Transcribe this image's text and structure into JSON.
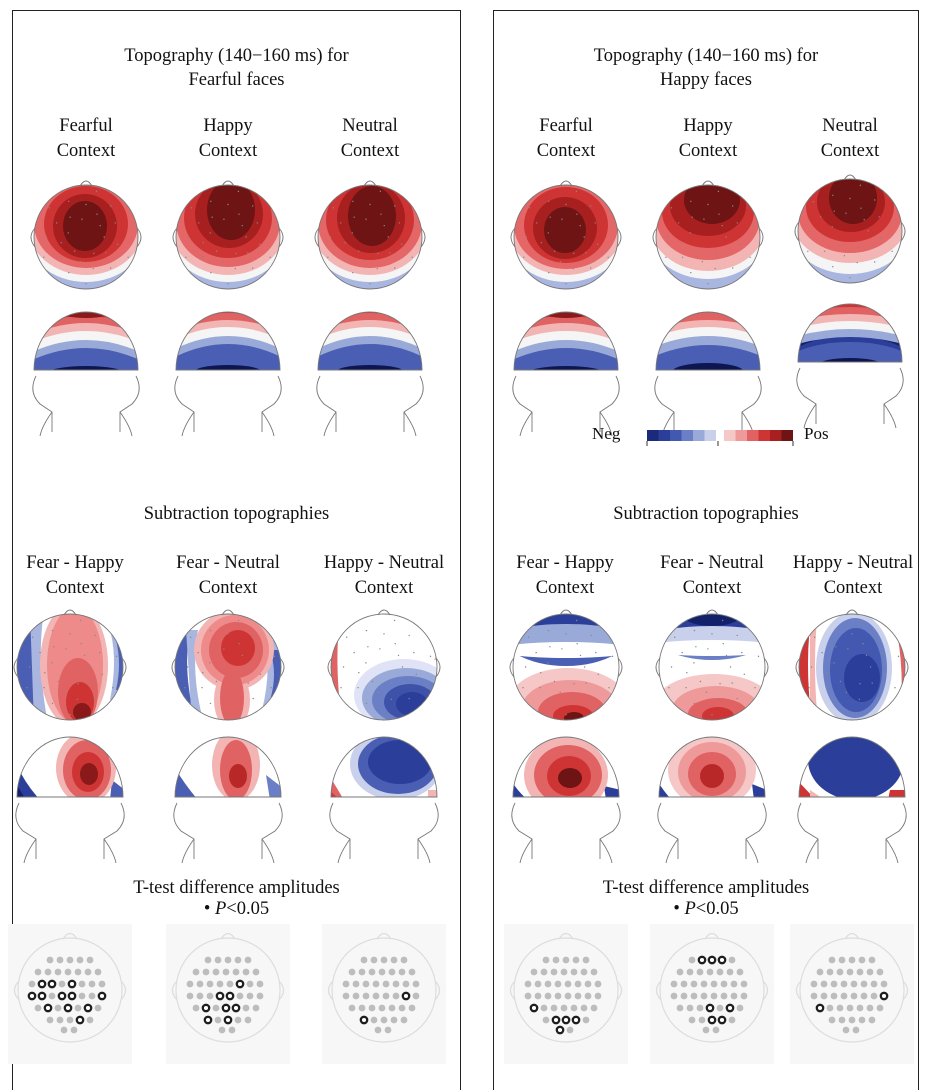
{
  "left": {
    "title_line1": "Topography (140−160 ms) for",
    "title_line2": "Fearful faces",
    "conditions": [
      {
        "line1": "Fearful",
        "line2": "Context"
      },
      {
        "line1": "Happy",
        "line2": "Context"
      },
      {
        "line1": "Neutral",
        "line2": "Context"
      }
    ],
    "subtraction_title": "Subtraction topographies",
    "subtractions": [
      {
        "line1": "Fear - Happy",
        "line2": "Context"
      },
      {
        "line1": "Fear - Neutral",
        "line2": "Context"
      },
      {
        "line1": "Happy - Neutral",
        "line2": "Context"
      }
    ],
    "ttest_title": "T-test difference amplitudes",
    "pvalue": {
      "bullet": "•",
      "label": "P",
      "text": "<0.05"
    }
  },
  "right": {
    "title_line1": "Topography (140−160 ms) for",
    "title_line2": "Happy faces",
    "conditions": [
      {
        "line1": "Fearful",
        "line2": "Context"
      },
      {
        "line1": "Happy",
        "line2": "Context"
      },
      {
        "line1": "Neutral",
        "line2": "Context"
      }
    ],
    "subtraction_title": "Subtraction topographies",
    "subtractions": [
      {
        "line1": "Fear - Happy",
        "line2": "Context"
      },
      {
        "line1": "Fear - Neutral",
        "line2": "Context"
      },
      {
        "line1": "Happy - Neutral",
        "line2": "Context"
      }
    ],
    "ttest_title": "T-test difference amplitudes",
    "pvalue": {
      "bullet": "•",
      "label": "P",
      "text": "<0.05"
    }
  },
  "colorbar": {
    "neg_label": "Neg",
    "pos_label": "Pos",
    "negative_colors": [
      "#1b2a7a",
      "#2a3e9a",
      "#4358b0",
      "#6a7fc6",
      "#9aaad8",
      "#c8d0ec"
    ],
    "positive_colors": [
      "#f6c7c7",
      "#ee9a9a",
      "#e06262",
      "#cf3434",
      "#a81f1f",
      "#6e1414"
    ]
  },
  "head_outline_color": "#777777",
  "electrode_colors": {
    "significant": "#1e1e1e",
    "nonsignificant": "#bdbdbd"
  }
}
